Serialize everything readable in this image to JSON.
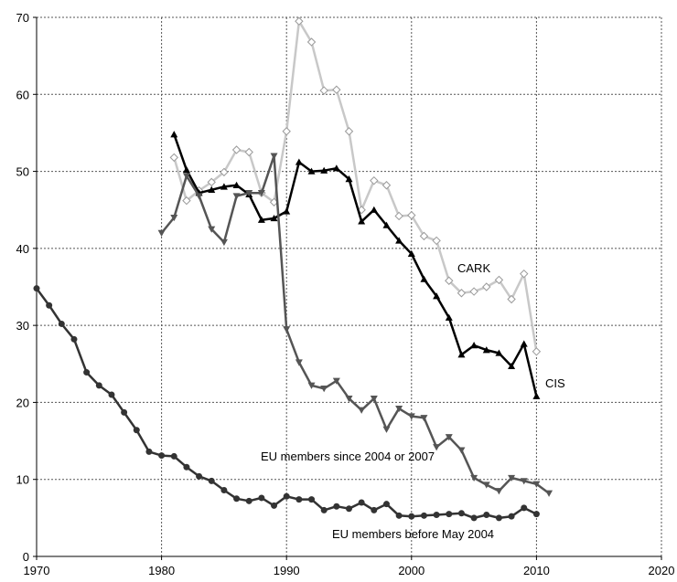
{
  "chart_data": {
    "type": "line",
    "title": "",
    "xlabel": "",
    "ylabel": "",
    "xlim": [
      1970,
      2020
    ],
    "ylim": [
      0,
      70
    ],
    "x_ticks": [
      1970,
      1980,
      1990,
      2000,
      2010,
      2020
    ],
    "y_ticks": [
      0,
      10,
      20,
      30,
      40,
      50,
      60,
      70
    ],
    "grid": true,
    "legend": "none",
    "series": [
      {
        "name": "CARK",
        "color": "#c8c8c8",
        "marker": "diamond-open",
        "x": [
          1981,
          1982,
          1983,
          1984,
          1985,
          1986,
          1987,
          1988,
          1989,
          1990,
          1991,
          1992,
          1993,
          1994,
          1995,
          1996,
          1997,
          1998,
          1999,
          2000,
          2001,
          2002,
          2003,
          2004,
          2005,
          2006,
          2007,
          2008,
          2009,
          2010
        ],
        "y": [
          51.8,
          46.2,
          47.5,
          48.6,
          49.9,
          52.8,
          52.5,
          47.2,
          46.0,
          55.2,
          69.5,
          66.8,
          60.5,
          60.6,
          55.2,
          45.0,
          48.8,
          48.2,
          44.2,
          44.3,
          41.6,
          41.0,
          35.8,
          34.2,
          34.4,
          35.0,
          35.9,
          33.4,
          36.7,
          26.6
        ]
      },
      {
        "name": "CIS",
        "color": "#000000",
        "marker": "triangle-up",
        "x": [
          1981,
          1982,
          1983,
          1984,
          1985,
          1986,
          1987,
          1988,
          1989,
          1990,
          1991,
          1992,
          1993,
          1994,
          1995,
          1996,
          1997,
          1998,
          1999,
          2000,
          2001,
          2002,
          2003,
          2004,
          2005,
          2006,
          2007,
          2008,
          2009,
          2010
        ],
        "y": [
          54.8,
          50.2,
          47.2,
          47.6,
          48.0,
          48.2,
          47.0,
          43.7,
          43.9,
          44.8,
          51.2,
          50.0,
          50.1,
          50.4,
          49.0,
          43.5,
          45.0,
          43.0,
          41.0,
          39.3,
          36.0,
          33.8,
          31.0,
          26.2,
          27.4,
          26.8,
          26.4,
          24.7,
          27.6,
          20.8
        ]
      },
      {
        "name": "EU members since 2004 or 2007",
        "color": "#555555",
        "marker": "triangle-down",
        "x": [
          1980,
          1981,
          1982,
          1983,
          1984,
          1985,
          1986,
          1987,
          1988,
          1989,
          1990,
          1991,
          1992,
          1993,
          1994,
          1995,
          1996,
          1997,
          1998,
          1999,
          2000,
          2001,
          2002,
          2003,
          2004,
          2005,
          2006,
          2007,
          2008,
          2009,
          2010,
          2011
        ],
        "y": [
          42.0,
          44.0,
          49.4,
          46.8,
          42.5,
          40.8,
          46.8,
          47.2,
          47.2,
          52.0,
          29.5,
          25.2,
          22.2,
          21.8,
          22.8,
          20.5,
          19.0,
          20.5,
          16.5,
          19.2,
          18.2,
          18.0,
          14.2,
          15.5,
          13.8,
          10.2,
          9.3,
          8.5,
          10.2,
          9.8,
          9.4,
          8.2
        ]
      },
      {
        "name": "EU members before May 2004",
        "color": "#333333",
        "marker": "circle",
        "x": [
          1970,
          1971,
          1972,
          1973,
          1974,
          1975,
          1976,
          1977,
          1978,
          1979,
          1980,
          1981,
          1982,
          1983,
          1984,
          1985,
          1986,
          1987,
          1988,
          1989,
          1990,
          1991,
          1992,
          1993,
          1994,
          1995,
          1996,
          1997,
          1998,
          1999,
          2000,
          2001,
          2002,
          2003,
          2004,
          2005,
          2006,
          2007,
          2008,
          2009,
          2010
        ],
        "y": [
          34.8,
          32.6,
          30.2,
          28.2,
          23.9,
          22.2,
          21.0,
          18.7,
          16.4,
          13.6,
          13.1,
          13.0,
          11.6,
          10.4,
          9.8,
          8.6,
          7.5,
          7.2,
          7.6,
          6.6,
          7.8,
          7.4,
          7.4,
          6.0,
          6.5,
          6.2,
          7.0,
          6.0,
          6.8,
          5.3,
          5.2,
          5.3,
          5.4,
          5.5,
          5.6,
          5.0,
          5.4,
          5.0,
          5.2,
          6.3,
          5.5
        ]
      }
    ],
    "annotations": [
      {
        "id": "cark",
        "text": "CARK"
      },
      {
        "id": "cis",
        "text": "CIS"
      },
      {
        "id": "eu-new",
        "text": "EU members since 2004 or 2007"
      },
      {
        "id": "eu-old",
        "text": "EU members before May 2004"
      }
    ]
  }
}
